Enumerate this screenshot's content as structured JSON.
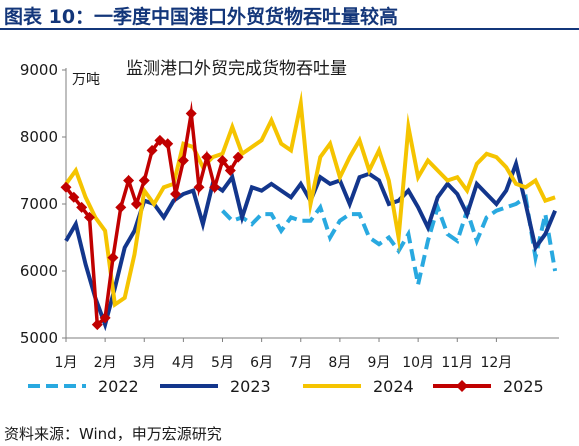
{
  "figure_title": "图表 10：一季度中国港口外贸货物吞吐量较高",
  "source_note": "资料来源：Wind，申万宏源研究",
  "chart_data": {
    "type": "line",
    "title": "监测港口外贸完成货物吞吐量",
    "ylabel": "万吨",
    "ylim": [
      5000,
      9000
    ],
    "yticks": [
      5000,
      6000,
      7000,
      8000,
      9000
    ],
    "xlim": [
      1,
      13.6
    ],
    "xticks": [
      {
        "x": 1,
        "label": "1月"
      },
      {
        "x": 2,
        "label": "2月"
      },
      {
        "x": 3,
        "label": "3月"
      },
      {
        "x": 4,
        "label": "4月"
      },
      {
        "x": 5,
        "label": "5月"
      },
      {
        "x": 6,
        "label": "6月"
      },
      {
        "x": 7,
        "label": "7月"
      },
      {
        "x": 8,
        "label": "8月"
      },
      {
        "x": 9,
        "label": "9月"
      },
      {
        "x": 10,
        "label": "10月"
      },
      {
        "x": 11,
        "label": "11月"
      },
      {
        "x": 12,
        "label": "12月"
      }
    ],
    "grid": false,
    "legend_position": "bottom",
    "series": [
      {
        "name": "2022",
        "color": "#29a9e0",
        "style": "dashed",
        "marker": "none",
        "x": [
          5.0,
          5.25,
          5.5,
          5.75,
          6.0,
          6.25,
          6.5,
          6.75,
          7.0,
          7.25,
          7.5,
          7.75,
          8.0,
          8.25,
          8.5,
          8.75,
          9.0,
          9.25,
          9.5,
          9.75,
          10.0,
          10.25,
          10.5,
          10.75,
          11.0,
          11.25,
          11.5,
          11.75,
          12.0,
          12.25,
          12.5,
          12.75,
          13.0,
          13.25,
          13.5
        ],
        "y": [
          6900,
          6750,
          6800,
          6700,
          6850,
          6850,
          6600,
          6800,
          6750,
          6750,
          6950,
          6500,
          6750,
          6850,
          6850,
          6500,
          6400,
          6500,
          6300,
          6550,
          5800,
          6450,
          6950,
          6550,
          6450,
          6900,
          6450,
          6800,
          6900,
          6950,
          7000,
          7100,
          6200,
          6850,
          6000
        ]
      },
      {
        "name": "2023",
        "color": "#13368c",
        "style": "solid",
        "marker": "none",
        "x": [
          1.0,
          1.25,
          1.5,
          1.75,
          2.0,
          2.25,
          2.5,
          2.75,
          3.0,
          3.25,
          3.5,
          3.75,
          4.0,
          4.25,
          4.5,
          4.75,
          5.0,
          5.25,
          5.5,
          5.75,
          6.0,
          6.25,
          6.5,
          6.75,
          7.0,
          7.25,
          7.5,
          7.75,
          8.0,
          8.25,
          8.5,
          8.75,
          9.0,
          9.25,
          9.5,
          9.75,
          10.0,
          10.25,
          10.5,
          10.75,
          11.0,
          11.25,
          11.5,
          11.75,
          12.0,
          12.25,
          12.5,
          12.75,
          13.0,
          13.25,
          13.5
        ],
        "y": [
          6450,
          6700,
          6100,
          5600,
          5200,
          5750,
          6350,
          6600,
          7050,
          7000,
          6800,
          7050,
          7150,
          7200,
          6700,
          7300,
          7200,
          7400,
          6800,
          7250,
          7200,
          7300,
          7200,
          7100,
          7300,
          7050,
          7400,
          7300,
          7350,
          7000,
          7400,
          7450,
          7350,
          7000,
          7050,
          7200,
          6950,
          6650,
          7100,
          7300,
          7150,
          6850,
          7300,
          7150,
          7000,
          7200,
          7600,
          7000,
          6350,
          6550,
          6900
        ]
      },
      {
        "name": "2024",
        "color": "#f5c400",
        "style": "solid",
        "marker": "none",
        "x": [
          1.0,
          1.25,
          1.5,
          1.75,
          2.0,
          2.25,
          2.5,
          2.75,
          3.0,
          3.25,
          3.5,
          3.75,
          4.0,
          4.25,
          4.5,
          4.75,
          5.0,
          5.25,
          5.5,
          5.75,
          6.0,
          6.25,
          6.5,
          6.75,
          7.0,
          7.25,
          7.5,
          7.75,
          8.0,
          8.25,
          8.5,
          8.75,
          9.0,
          9.25,
          9.5,
          9.75,
          10.0,
          10.25,
          10.5,
          10.75,
          11.0,
          11.25,
          11.5,
          11.75,
          12.0,
          12.25,
          12.5,
          12.75,
          13.0,
          13.25,
          13.5
        ],
        "y": [
          7300,
          7500,
          7100,
          6800,
          6600,
          5500,
          5600,
          6250,
          7200,
          7000,
          7250,
          7300,
          7900,
          7850,
          7550,
          7700,
          7750,
          8150,
          7750,
          7850,
          7950,
          8250,
          7900,
          7800,
          8500,
          7000,
          7700,
          7900,
          7400,
          7700,
          7950,
          7500,
          7800,
          7350,
          6500,
          8150,
          7400,
          7650,
          7500,
          7350,
          7400,
          7200,
          7600,
          7750,
          7700,
          7550,
          7300,
          7250,
          7350,
          7050,
          7100
        ]
      },
      {
        "name": "2025",
        "color": "#c00000",
        "style": "solid",
        "marker": "diamond",
        "x": [
          1.0,
          1.2,
          1.4,
          1.6,
          1.8,
          2.0,
          2.2,
          2.4,
          2.6,
          2.8,
          3.0,
          3.2,
          3.4,
          3.6,
          3.8,
          4.0,
          4.2,
          4.4,
          4.6,
          4.8,
          5.0,
          5.2,
          5.4
        ],
        "y": [
          7250,
          7100,
          6950,
          6800,
          5200,
          5300,
          6200,
          6950,
          7350,
          7000,
          7350,
          7800,
          7950,
          7900,
          7150,
          7650,
          8350,
          7250,
          7700,
          7250,
          7650,
          7500,
          7700
        ]
      }
    ]
  }
}
